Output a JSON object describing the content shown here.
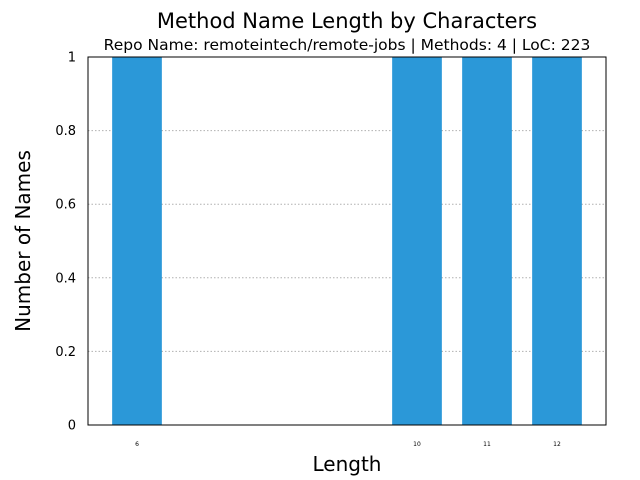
{
  "chart_data": {
    "type": "bar",
    "title": "Method Name Length by Characters",
    "subtitle": "Repo Name: remoteintech/remote-jobs | Methods: 4 | LoC: 223",
    "xlabel": "Length",
    "ylabel": "Number of Names",
    "x": [
      6,
      10,
      11,
      12
    ],
    "values": [
      1,
      1,
      1,
      1
    ],
    "x_tick_labels": [
      "6",
      "10",
      "11",
      "12"
    ],
    "xlim": [
      5.3,
      12.7
    ],
    "ylim": [
      0,
      1
    ],
    "y_ticks": [
      0,
      0.2,
      0.4,
      0.6,
      0.8,
      1
    ],
    "y_tick_labels": [
      "0",
      "0.2",
      "0.4",
      "0.6",
      "0.8",
      "1"
    ],
    "grid": "horizontal dotted",
    "bar_color": "#2b98d8",
    "grid_color": "#b0b0b0"
  }
}
